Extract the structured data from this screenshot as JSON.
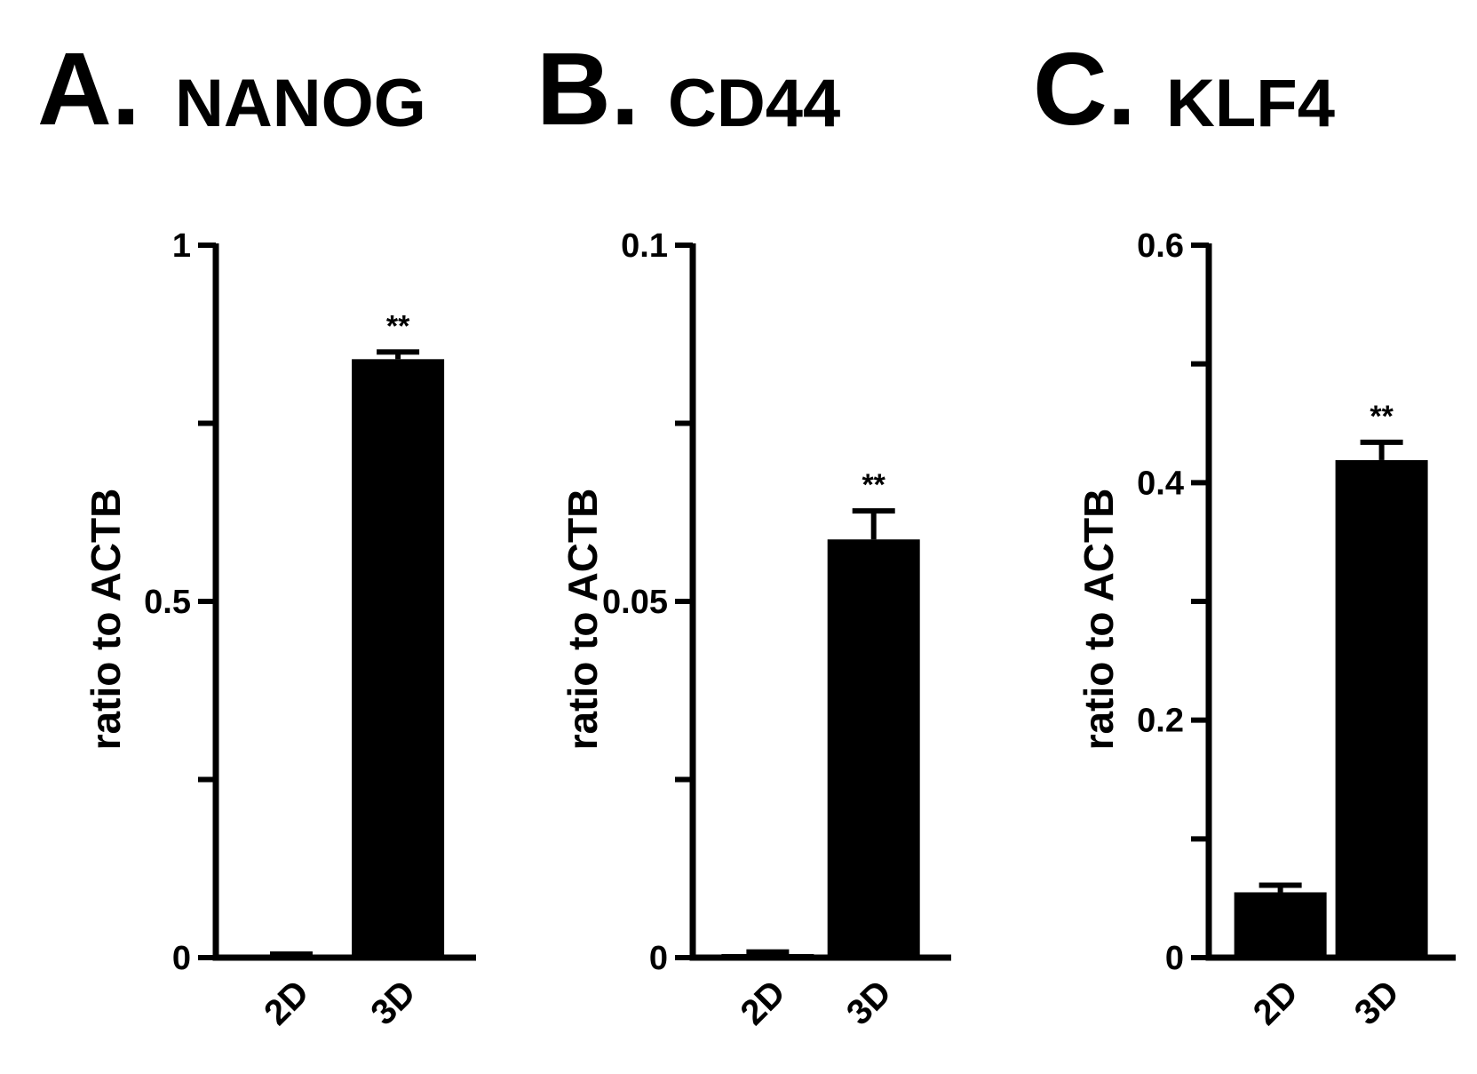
{
  "chart_data": [
    {
      "type": "bar",
      "panel": "A.",
      "title": "NANOG",
      "ylabel": "ratio to ACTB",
      "xlabel": "",
      "categories": [
        "2D",
        "3D"
      ],
      "values": [
        0.003,
        0.84
      ],
      "errors": [
        0.002,
        0.01
      ],
      "significance": [
        "",
        "**"
      ],
      "ylim": [
        0,
        1
      ],
      "yticks": [
        0,
        0.25,
        0.5,
        0.75,
        1
      ],
      "yticklabels": [
        "0",
        "",
        "0.5",
        "",
        "1"
      ],
      "color": "#000000"
    },
    {
      "type": "bar",
      "panel": "B.",
      "title": "CD44",
      "ylabel": "ratio to ACTB",
      "xlabel": "",
      "categories": [
        "2D",
        "3D"
      ],
      "values": [
        0.0005,
        0.0587
      ],
      "errors": [
        0.0003,
        0.004
      ],
      "significance": [
        "",
        "**"
      ],
      "ylim": [
        0,
        0.1
      ],
      "yticks": [
        0,
        0.025,
        0.05,
        0.075,
        0.1
      ],
      "yticklabels": [
        "0",
        "",
        "0.05",
        "",
        "0.1"
      ],
      "color": "#000000"
    },
    {
      "type": "bar",
      "panel": "C.",
      "title": "KLF4",
      "ylabel": "ratio to ACTB",
      "xlabel": "",
      "categories": [
        "2D",
        "3D"
      ],
      "values": [
        0.055,
        0.419
      ],
      "errors": [
        0.006,
        0.015
      ],
      "significance": [
        "",
        "**"
      ],
      "ylim": [
        0,
        0.6
      ],
      "yticks": [
        0,
        0.1,
        0.2,
        0.3,
        0.4,
        0.5,
        0.6
      ],
      "yticklabels": [
        "0",
        "",
        "0.2",
        "",
        "0.4",
        "",
        "0.6"
      ],
      "color": "#000000"
    }
  ]
}
